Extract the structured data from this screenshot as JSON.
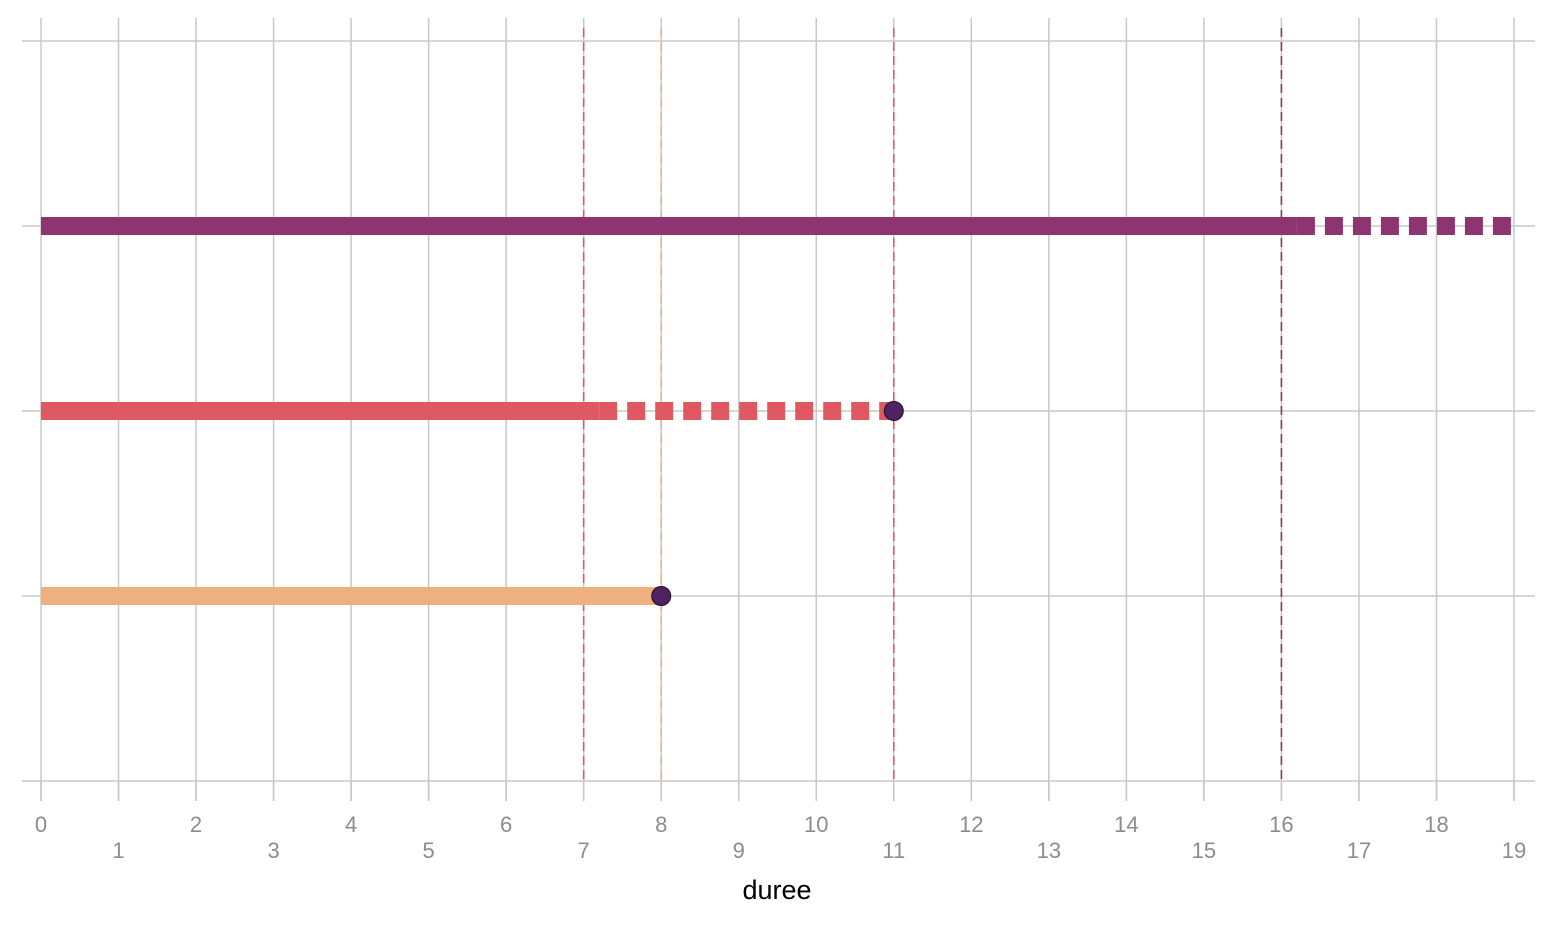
{
  "chart_data": {
    "type": "line",
    "xlabel": "duree",
    "ylabel": "",
    "xlim": [
      0,
      19
    ],
    "x_ticks": [
      0,
      1,
      2,
      3,
      4,
      5,
      6,
      7,
      8,
      9,
      10,
      11,
      12,
      13,
      14,
      15,
      16,
      17,
      18,
      19
    ],
    "x_tick_labels": [
      "0",
      "1",
      "2",
      "3",
      "4",
      "5",
      "6",
      "7",
      "8",
      "9",
      "10",
      "11",
      "12",
      "13",
      "14",
      "15",
      "16",
      "17",
      "18",
      "19"
    ],
    "y_categories": 3,
    "grid": true,
    "legend": "none",
    "series": [
      {
        "row": 3,
        "color": "#8e3571",
        "solid": [
          0,
          16.2
        ],
        "dashed": [
          16.2,
          19
        ],
        "event": null,
        "vline": 16
      },
      {
        "row": 2,
        "color": "#df5862",
        "solid": [
          0,
          7.2
        ],
        "dashed": [
          7.2,
          11
        ],
        "event": 11,
        "vline": [
          7,
          11
        ]
      },
      {
        "row": 1,
        "color": "#eeb07e",
        "solid": [
          0,
          8
        ],
        "dashed": null,
        "event": 8,
        "vline": 8
      }
    ],
    "event_marker_color": "#4f2362",
    "grid_color": "#c8c8c8"
  }
}
